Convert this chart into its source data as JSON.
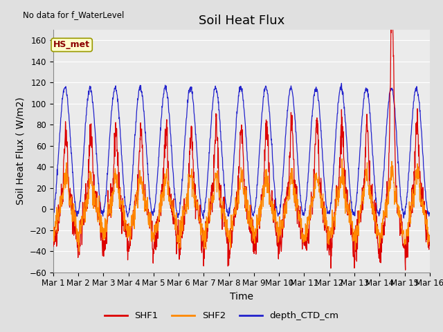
{
  "title": "Soil Heat Flux",
  "xlabel": "Time",
  "ylabel": "Soil Heat Flux ( W/m2)",
  "ylim": [
    -60,
    170
  ],
  "yticks": [
    -60,
    -40,
    -20,
    0,
    20,
    40,
    60,
    80,
    100,
    120,
    140,
    160
  ],
  "x_labels": [
    "Mar 1",
    "Mar 2",
    "Mar 3",
    "Mar 4",
    "Mar 5",
    "Mar 6",
    "Mar 7",
    "Mar 8",
    "Mar 9",
    "Mar 10",
    "Mar 11",
    "Mar 12",
    "Mar 13",
    "Mar 14",
    "Mar 15",
    "Mar 16"
  ],
  "no_data_text": "No data for f_WaterLevel",
  "hs_met_text": "HS_met",
  "legend_labels": [
    "SHF1",
    "SHF2",
    "depth_CTD_cm"
  ],
  "line_colors": [
    "#dd0000",
    "#ff8800",
    "#2222cc"
  ],
  "bg_color": "#e0e0e0",
  "plot_bg": "#ebebeb",
  "grid_color": "#ffffff",
  "title_fontsize": 13,
  "axis_fontsize": 10,
  "tick_fontsize": 8.5,
  "num_points": 1440
}
